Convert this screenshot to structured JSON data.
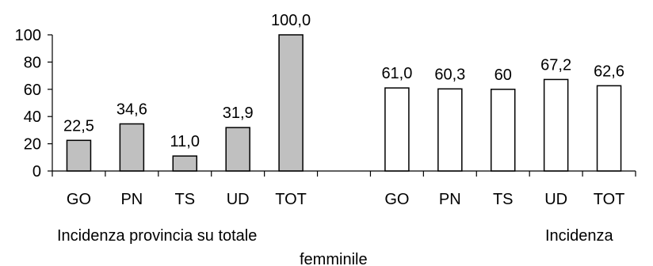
{
  "chart_data": {
    "type": "bar",
    "ylim": [
      0,
      100
    ],
    "yticks": [
      0,
      20,
      40,
      60,
      80,
      100
    ],
    "grid": false,
    "groups": [
      {
        "label": "Incidenza provincia su totale",
        "fill": "#c0c0c0",
        "categories": [
          "GO",
          "PN",
          "TS",
          "UD",
          "TOT"
        ],
        "values": [
          22.5,
          34.6,
          11.0,
          31.9,
          100.0
        ],
        "data_labels": [
          "22,5",
          "34,6",
          "11,0",
          "31,9",
          "100,0"
        ]
      },
      {
        "label": "Incidenza",
        "fill": "#ffffff",
        "categories": [
          "GO",
          "PN",
          "TS",
          "UD",
          "TOT"
        ],
        "values": [
          61.0,
          60.3,
          60.0,
          67.2,
          62.6
        ],
        "data_labels": [
          "61,0",
          "60,3",
          "60",
          "67,2",
          "62,6"
        ]
      }
    ],
    "footer_label": "femminile"
  }
}
